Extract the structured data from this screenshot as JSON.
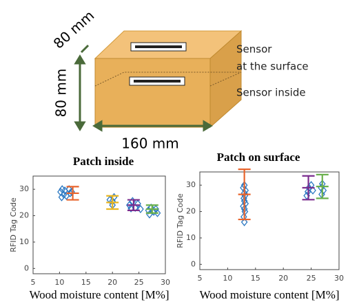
{
  "diagram": {
    "depth_label": "80 mm",
    "height_label": "80 mm",
    "width_label": "160 mm",
    "sensor_surface": [
      "Sensor",
      "at the surface"
    ],
    "sensor_inside": "Sensor inside"
  },
  "chart_data": [
    {
      "type": "scatter",
      "title": "Patch inside",
      "x_label": "Wood moisture content [M%]",
      "y_label": "RFID Tag Code",
      "xlim": [
        5,
        30
      ],
      "xticks": [
        5,
        10,
        15,
        20,
        25,
        30
      ],
      "ylim": [
        -2,
        35
      ],
      "yticks": [
        0,
        10,
        20,
        30
      ],
      "series": [
        {
          "color": "#2b78c2",
          "x": [
            10.2,
            10.5,
            10.8,
            11,
            11.3,
            11.8,
            12,
            12.3,
            10.4,
            19.5,
            20,
            20.3,
            20,
            23.2,
            23.8,
            24.3,
            24.8,
            25.3,
            23.5,
            26.8,
            27.3,
            27.8,
            28.2,
            28.5,
            27
          ],
          "values": [
            29,
            30,
            28,
            29.5,
            27.5,
            30,
            28.5,
            29,
            27,
            26,
            24,
            27,
            25.5,
            24,
            25.5,
            23,
            24.5,
            22.5,
            22.8,
            22,
            23,
            21.5,
            22.5,
            21,
            20.5
          ]
        }
      ],
      "error_bars": {
        "x": [
          12.5,
          20,
          24,
          27.5
        ],
        "values": [
          28.5,
          25,
          24,
          22.5
        ],
        "errors": [
          2.5,
          2.5,
          2,
          1.5
        ],
        "colors": [
          "#e8642c",
          "#e8b520",
          "#7b2d8e",
          "#6ab04c"
        ]
      }
    },
    {
      "type": "scatter",
      "title": "Patch on surface",
      "x_label": "Wood moisture content [M%]",
      "y_label": "RFID Tag Code",
      "xlim": [
        5,
        30
      ],
      "xticks": [
        5,
        10,
        15,
        20,
        25,
        30
      ],
      "ylim": [
        -2,
        35
      ],
      "yticks": [
        0,
        10,
        20,
        30
      ],
      "series": [
        {
          "color": "#2b78c2",
          "x": [
            13,
            12.9,
            13.1,
            13,
            12.8,
            13.2,
            13,
            12.9,
            13.1,
            13,
            13.2,
            12.8,
            13,
            24.2,
            24.4,
            24.6,
            25,
            25.3,
            26.8,
            27,
            27.2,
            26.9
          ],
          "values": [
            16,
            18,
            20,
            21,
            22,
            23,
            24,
            25,
            26,
            27,
            28,
            29,
            30,
            26,
            27.5,
            29,
            30,
            28,
            29,
            30.5,
            28,
            26.5
          ]
        }
      ],
      "error_bars": {
        "x": [
          13,
          24.5,
          27
        ],
        "values": [
          26.5,
          29,
          29.5
        ],
        "errors": [
          9.5,
          4.5,
          4.5
        ],
        "colors": [
          "#e8642c",
          "#7b2d8e",
          "#6ab04c"
        ]
      }
    }
  ]
}
